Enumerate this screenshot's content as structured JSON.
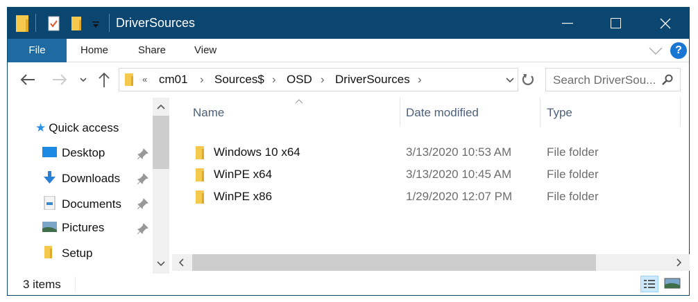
{
  "window": {
    "title": "DriverSources"
  },
  "colors": {
    "titlebar": "#0b4670",
    "file_tab": "#1f6ba1",
    "help": "#1976d2",
    "folder": "#f4c94e"
  },
  "ribbon": {
    "tabs": [
      "File",
      "Home",
      "Share",
      "View"
    ]
  },
  "address": {
    "overflow": "«",
    "crumbs": [
      "cm01",
      "Sources$",
      "OSD",
      "DriverSources"
    ]
  },
  "search": {
    "placeholder": "Search DriverSou..."
  },
  "sidebar": {
    "items": [
      {
        "label": "Quick access",
        "icon": "star-icon"
      },
      {
        "label": "Desktop",
        "icon": "desktop-icon",
        "pinned": true
      },
      {
        "label": "Downloads",
        "icon": "download-icon",
        "pinned": true
      },
      {
        "label": "Documents",
        "icon": "documents-icon",
        "pinned": true
      },
      {
        "label": "Pictures",
        "icon": "pictures-icon",
        "pinned": true
      },
      {
        "label": "Setup",
        "icon": "folder-icon",
        "pinned": false
      }
    ],
    "scroll_position": 0.0,
    "scroll_thumb_fraction": 0.38
  },
  "columns": [
    "Name",
    "Date modified",
    "Type"
  ],
  "files": [
    {
      "name": "Windows 10 x64",
      "date": "3/13/2020 10:53 AM",
      "type": "File folder"
    },
    {
      "name": "WinPE x64",
      "date": "3/13/2020 10:45 AM",
      "type": "File folder"
    },
    {
      "name": "WinPE x86",
      "date": "1/29/2020 12:07 PM",
      "type": "File folder"
    }
  ],
  "status": {
    "count": "3 items"
  }
}
